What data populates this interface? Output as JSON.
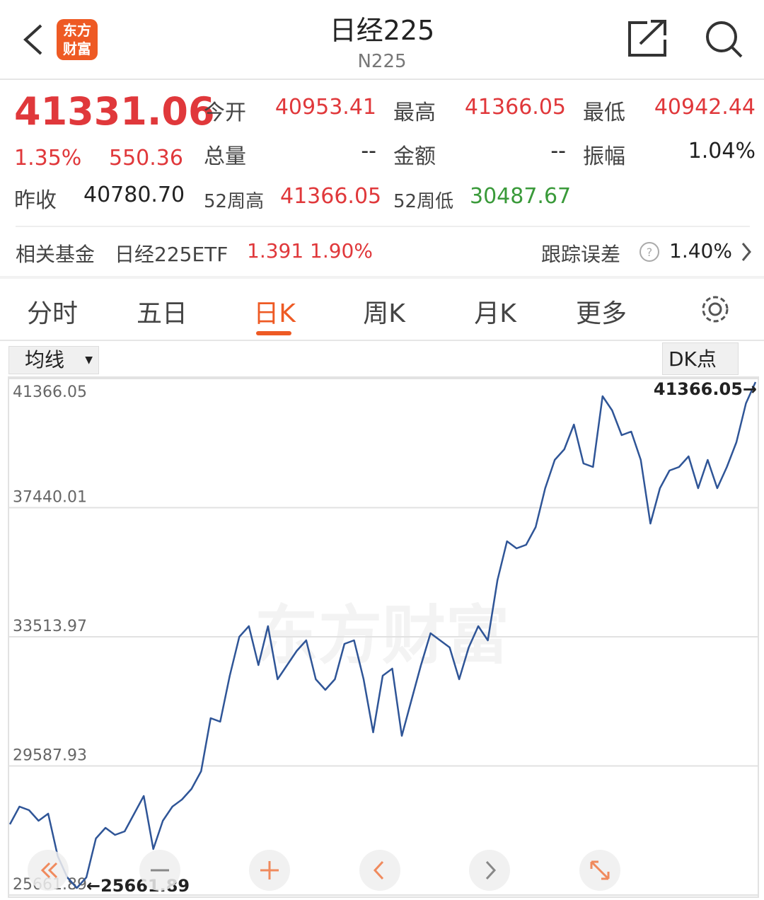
{
  "header": {
    "logo": [
      "东方",
      "财富"
    ],
    "title": "日经225",
    "subtitle": "N225"
  },
  "quote": {
    "price": "41331.06",
    "change_pct": "1.35%",
    "change": "550.36",
    "prev_close_label": "昨收",
    "prev_close": "40780.70",
    "stats": [
      [
        "今开",
        "40953.41"
      ],
      [
        "最高",
        "41366.05"
      ],
      [
        "最低",
        "40942.44"
      ],
      [
        "总量",
        "--"
      ],
      [
        "金额",
        "--"
      ],
      [
        "振幅",
        "1.04%"
      ],
      [
        "52周高",
        "41366.05"
      ],
      [
        "52周低",
        "30487.67"
      ]
    ]
  },
  "fund": {
    "label": "相关基金",
    "name": "日经225ETF",
    "price": "1.391",
    "pct": "1.90%",
    "tracking_label": "跟踪误差",
    "tracking": "1.40%"
  },
  "tabs": [
    "分时",
    "五日",
    "日K",
    "周K",
    "月K",
    "更多"
  ],
  "chart_controls": {
    "indicator": "均线",
    "dk": "DK点"
  },
  "chart_data": {
    "type": "line",
    "color": "#2f5597",
    "watermark": "东方财富",
    "ylim": [
      25661.89,
      41366.05
    ],
    "yticks": [
      25661.89,
      29587.93,
      33513.97,
      37440.01,
      41366.05
    ],
    "annotations": [
      "41366.05→",
      "←25661.89"
    ],
    "values": [
      27813,
      28351,
      28244,
      27921,
      28136,
      26845,
      26200,
      25877,
      26200,
      27383,
      27706,
      27491,
      27598,
      28136,
      28674,
      27061,
      27921,
      28351,
      28566,
      28889,
      29427,
      31040,
      30933,
      32331,
      33514,
      33837,
      32654,
      33837,
      32223,
      32654,
      33084,
      33407,
      32223,
      31901,
      32223,
      33299,
      33407,
      32223,
      30610,
      32331,
      32546,
      30502,
      31578,
      32654,
      33622,
      33407,
      33191,
      32223,
      33191,
      33837,
      33407,
      35235,
      36418,
      36203,
      36311,
      36848,
      38032,
      38892,
      39215,
      39968,
      38785,
      38677,
      40828,
      40398,
      39645,
      39753,
      38892,
      36956,
      38032,
      38569,
      38677,
      39000,
      38032,
      38892,
      38032,
      38677,
      39430,
      40613,
      41258
    ]
  }
}
